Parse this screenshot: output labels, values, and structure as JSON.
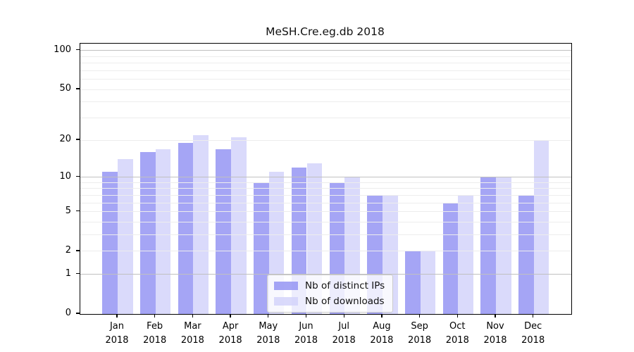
{
  "title": "MeSH.Cre.eg.db 2018",
  "legend": {
    "items": [
      {
        "label": "Nb of distinct IPs",
        "color": "rgba(143,143,243,0.8)"
      },
      {
        "label": "Nb of downloads",
        "color": "rgba(209,209,250,0.8)"
      }
    ]
  },
  "axes": {
    "y_tick_labels": [
      "100",
      "50",
      "20",
      "10",
      "5",
      "2",
      "1",
      "0"
    ],
    "x_year_label": "2018"
  },
  "chart_data": {
    "type": "bar",
    "title": "MeSH.Cre.eg.db 2018",
    "categories": [
      "Jan",
      "Feb",
      "Mar",
      "Apr",
      "May",
      "Jun",
      "Jul",
      "Aug",
      "Sep",
      "Oct",
      "Nov",
      "Dec"
    ],
    "x_second_line": "2018",
    "series": [
      {
        "name": "Nb of distinct IPs",
        "color": "rgba(143,143,243,0.8)",
        "values": [
          11,
          16,
          19,
          17,
          9,
          12,
          9,
          7,
          2,
          6,
          10,
          7
        ]
      },
      {
        "name": "Nb of downloads",
        "color": "rgba(209,209,250,0.8)",
        "values": [
          14,
          17,
          22,
          21,
          11,
          13,
          10,
          7,
          2,
          7,
          10,
          20
        ]
      }
    ],
    "xlabel": "",
    "ylabel": "",
    "yscale": "log1p",
    "ylim": [
      0,
      113
    ],
    "yticks": [
      0,
      1,
      2,
      5,
      10,
      20,
      50,
      100
    ],
    "major_gridlines": [
      1,
      10,
      100
    ],
    "minor_gridlines": [
      2,
      3,
      4,
      5,
      6,
      7,
      8,
      9,
      20,
      30,
      40,
      50,
      60,
      70,
      80,
      90
    ],
    "grid": true,
    "legend_position": "lower center"
  }
}
